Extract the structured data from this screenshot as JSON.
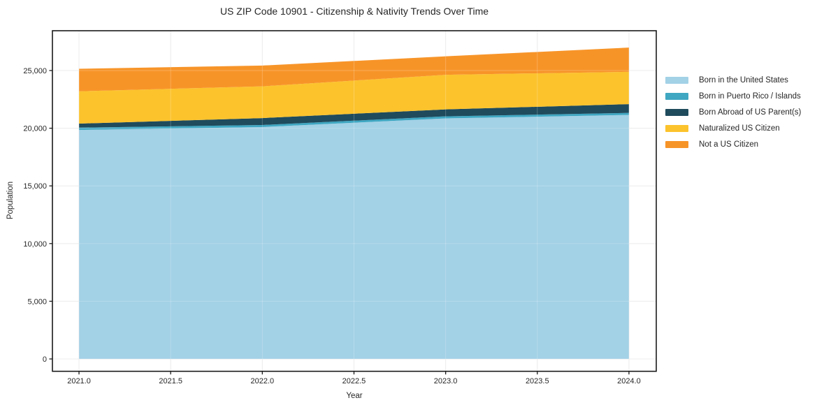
{
  "chart_data": {
    "type": "area",
    "stacked": true,
    "title": "US ZIP Code 10901 - Citizenship & Nativity Trends Over Time",
    "xlabel": "Year",
    "ylabel": "Population",
    "x": [
      2021,
      2022,
      2023,
      2024
    ],
    "series": [
      {
        "name": "Born in the United States",
        "color": "#a3d1e6",
        "values": [
          19850,
          20100,
          20850,
          21150
        ]
      },
      {
        "name": "Born in Puerto Rico / Islands",
        "color": "#3fa7c2",
        "values": [
          200,
          180,
          180,
          180
        ]
      },
      {
        "name": "Born Abroad of US Parent(s)",
        "color": "#1f4b5d",
        "values": [
          350,
          600,
          600,
          760
        ]
      },
      {
        "name": "Naturalized US Citizen",
        "color": "#fcc32d",
        "values": [
          2800,
          2750,
          3000,
          2800
        ]
      },
      {
        "name": "Not a US Citizen",
        "color": "#f79428",
        "values": [
          1950,
          1800,
          1600,
          2100
        ]
      }
    ],
    "stack_totals": [
      25150,
      25430,
      26230,
      26990
    ],
    "x_tick_values": [
      2021,
      2021.5,
      2022,
      2022.5,
      2023,
      2023.5,
      2024
    ],
    "x_tick_labels": [
      "2021.0",
      "2021.5",
      "2022.0",
      "2022.5",
      "2023.0",
      "2023.5",
      "2024.0"
    ],
    "y_tick_values": [
      0,
      5000,
      10000,
      15000,
      20000,
      25000
    ],
    "y_tick_labels": [
      "0",
      "5,000",
      "10,000",
      "15,000",
      "20,000",
      "25,000"
    ],
    "xlim": [
      2020.855,
      2024.149
    ],
    "ylim": [
      -1070,
      28450
    ],
    "grid": true,
    "legend_position": "right",
    "frame_color": "#1a1a1a",
    "grid_color": "#e7e7e7",
    "background_color": "#ffffff"
  }
}
